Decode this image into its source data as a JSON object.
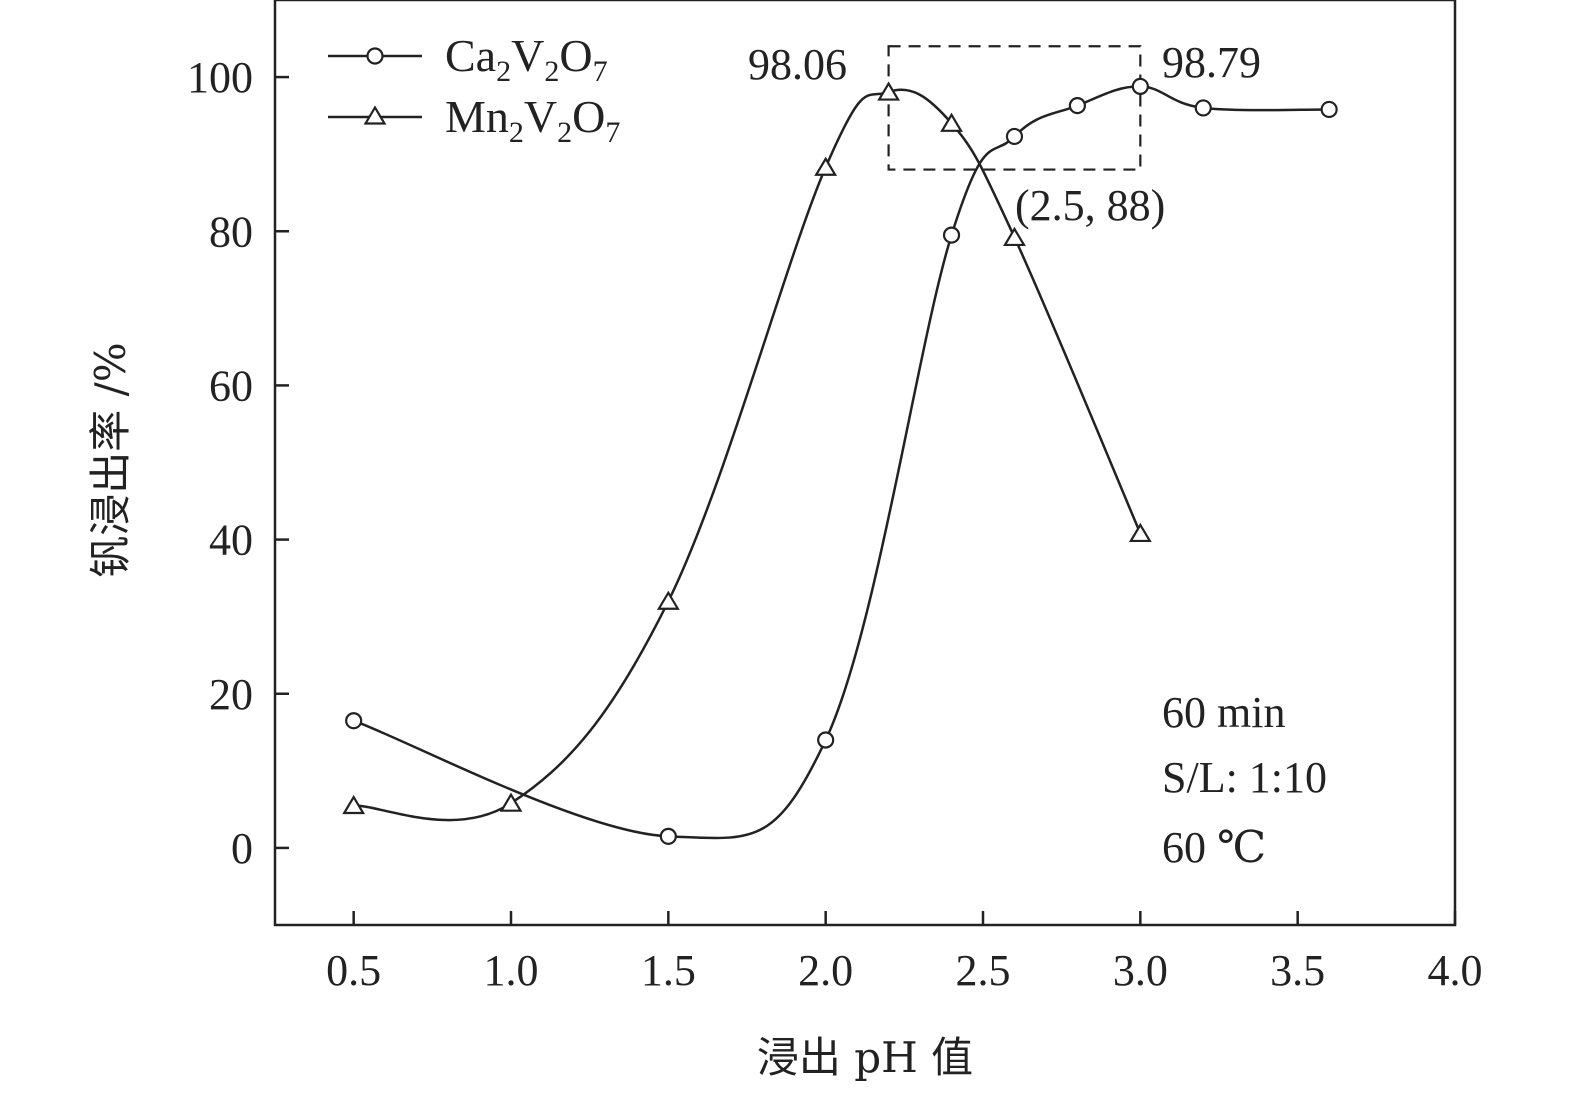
{
  "chart_data": {
    "type": "line",
    "title": "",
    "xlabel": "浸出 pH 值",
    "ylabel": "钒浸出率 /%",
    "xlim": [
      0.25,
      4.0
    ],
    "ylim": [
      -10,
      110
    ],
    "xticks": [
      "0.5",
      "1.0",
      "1.5",
      "2.0",
      "2.5",
      "3.0",
      "3.5",
      "4.0"
    ],
    "xtick_values": [
      0.5,
      1.0,
      1.5,
      2.0,
      2.5,
      3.0,
      3.5,
      4.0
    ],
    "yticks": [
      "0",
      "20",
      "40",
      "60",
      "80",
      "100"
    ],
    "ytick_values": [
      0,
      20,
      40,
      60,
      80,
      100
    ],
    "grid": false,
    "legend_position": "top-left",
    "series": [
      {
        "name": "Ca2V2O7",
        "name_parts": [
          [
            "Ca",
            "n"
          ],
          [
            "2",
            "s"
          ],
          [
            "V",
            "n"
          ],
          [
            "2",
            "s"
          ],
          [
            "O",
            "n"
          ],
          [
            "7",
            "s"
          ]
        ],
        "marker": "circle",
        "x": [
          0.5,
          1.5,
          2.0,
          2.4,
          2.6,
          2.8,
          3.0,
          3.2,
          3.6
        ],
        "y": [
          16.5,
          1.5,
          14,
          79.5,
          92.3,
          96.3,
          98.79,
          96,
          95.8
        ]
      },
      {
        "name": "Mn2V2O7",
        "name_parts": [
          [
            "Mn",
            "n"
          ],
          [
            "2",
            "s"
          ],
          [
            "V",
            "n"
          ],
          [
            "2",
            "s"
          ],
          [
            "O",
            "n"
          ],
          [
            "7",
            "s"
          ]
        ],
        "marker": "triangle",
        "x": [
          0.5,
          1.0,
          1.5,
          2.0,
          2.2,
          2.4,
          2.6,
          3.0
        ],
        "y": [
          5.5,
          5.8,
          32,
          88.3,
          98.06,
          94,
          79.2,
          40.8
        ]
      }
    ],
    "annotations": {
      "peak_mn": "98.06",
      "peak_ca": "98.79",
      "intersection": "(2.5, 88)",
      "box": {
        "x0": 2.2,
        "x1": 3.0,
        "y0": 88,
        "y1": 104
      }
    },
    "conditions": [
      "60 min",
      "S/L: 1:10",
      "60 ℃"
    ]
  }
}
